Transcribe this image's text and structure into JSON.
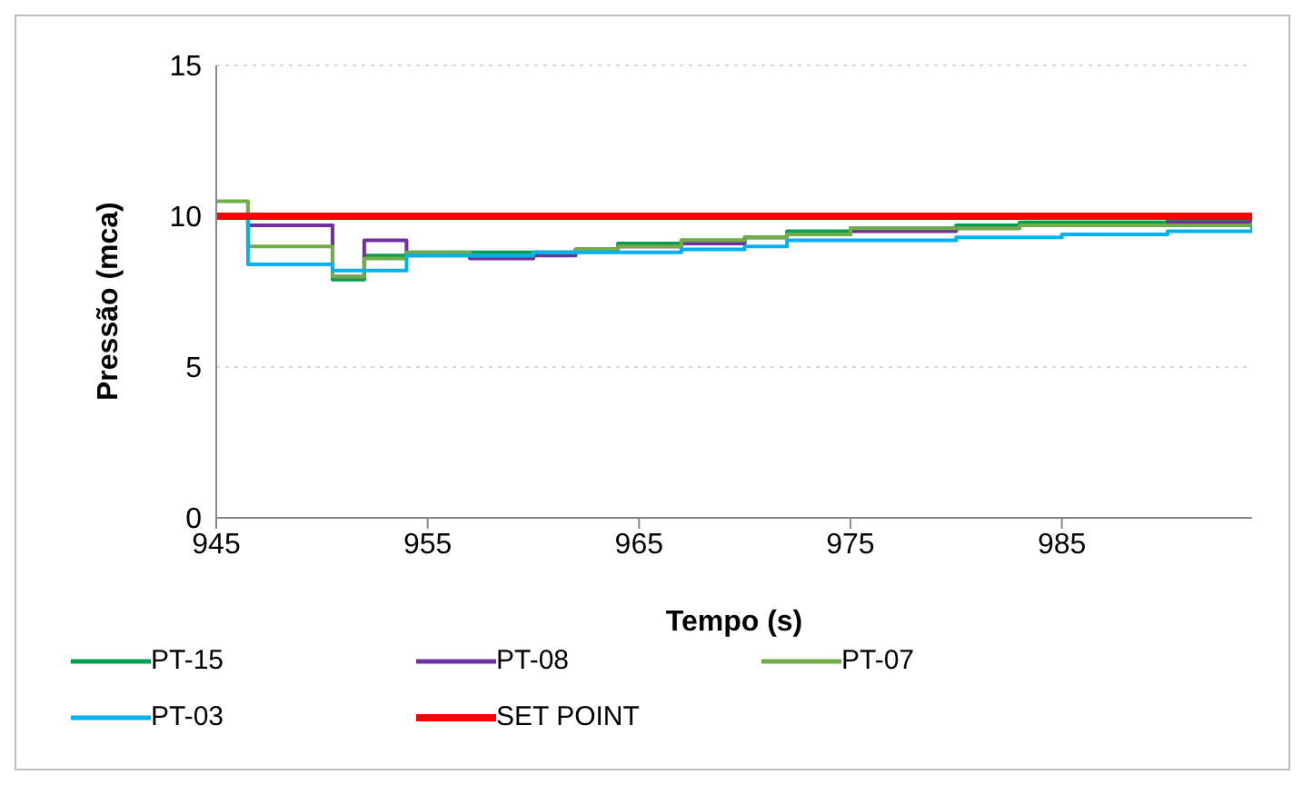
{
  "chart_data": {
    "type": "step",
    "xlabel": "Tempo (s)",
    "ylabel": "Pressão (mca)",
    "x": [
      945,
      946.5,
      950.5,
      952,
      954,
      957,
      960,
      962,
      964,
      967,
      970,
      972,
      975,
      980,
      983,
      985,
      990,
      994
    ],
    "xlim": [
      945,
      994
    ],
    "xticks": [
      945,
      955,
      965,
      975,
      985
    ],
    "ylim": [
      0,
      15
    ],
    "yticks": [
      0,
      5,
      10,
      15
    ],
    "grid": "y",
    "legend": "bottom",
    "series": [
      {
        "name": "PT-15",
        "color": "#00a050",
        "values": [
          10,
          9.7,
          7.9,
          8.7,
          8.8,
          8.8,
          8.8,
          8.9,
          9.1,
          9.2,
          9.3,
          9.5,
          9.6,
          9.7,
          9.8,
          9.8,
          9.9,
          10
        ]
      },
      {
        "name": "PT-08",
        "color": "#7030a0",
        "values": [
          10,
          9.7,
          8.0,
          9.2,
          8.7,
          8.6,
          8.7,
          8.9,
          9.0,
          9.1,
          9.3,
          9.4,
          9.5,
          9.6,
          9.7,
          9.7,
          9.8,
          10
        ]
      },
      {
        "name": "PT-07",
        "color": "#70ad47",
        "values": [
          10.5,
          9.0,
          8.0,
          8.6,
          8.8,
          8.7,
          8.8,
          8.9,
          9.0,
          9.2,
          9.3,
          9.4,
          9.6,
          9.6,
          9.7,
          9.7,
          9.7,
          9.8
        ]
      },
      {
        "name": "PT-03",
        "color": "#00b0f0",
        "values": [
          10,
          8.4,
          8.2,
          8.2,
          8.7,
          8.7,
          8.8,
          8.8,
          8.8,
          8.9,
          9.0,
          9.2,
          9.2,
          9.3,
          9.3,
          9.4,
          9.5,
          9.7
        ]
      },
      {
        "name": "SET POINT",
        "color": "#ff0000",
        "type": "line",
        "values": [
          10,
          10,
          10,
          10,
          10,
          10,
          10,
          10,
          10,
          10,
          10,
          10,
          10,
          10,
          10,
          10,
          10,
          10
        ]
      }
    ]
  }
}
